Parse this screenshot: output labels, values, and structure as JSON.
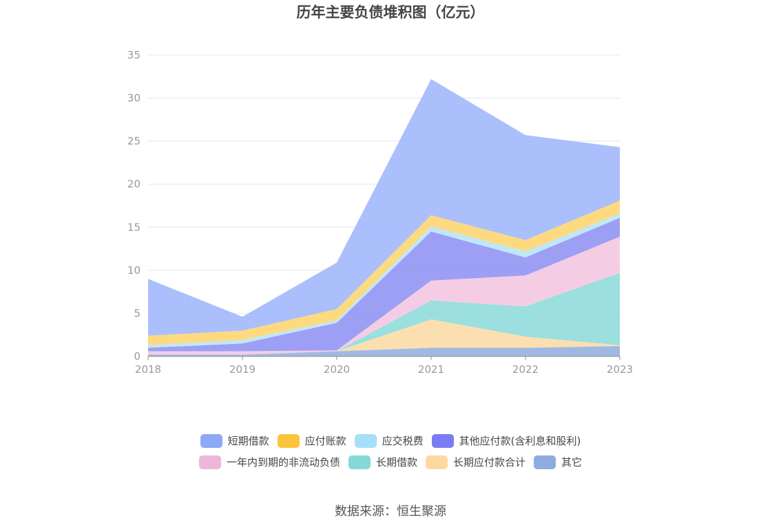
{
  "title": "历年主要负债堆积图（亿元）",
  "source": "数据来源：恒生聚源",
  "chart_data": {
    "type": "area",
    "stacked": true,
    "x": [
      "2018",
      "2019",
      "2020",
      "2021",
      "2022",
      "2023"
    ],
    "ylim": [
      0,
      35
    ],
    "yticks": [
      0,
      5,
      10,
      15,
      20,
      25,
      30,
      35
    ],
    "grid": true,
    "legend_position": "bottom",
    "series": [
      {
        "name": "其它",
        "color": "#8fadde",
        "values": [
          0.2,
          0.2,
          0.6,
          1.0,
          1.0,
          1.2
        ]
      },
      {
        "name": "长期应付款合计",
        "color": "#fcd9a2",
        "values": [
          0.0,
          0.0,
          0.0,
          3.3,
          1.3,
          0.1
        ]
      },
      {
        "name": "长期借款",
        "color": "#8ad9d9",
        "values": [
          0.0,
          0.0,
          0.0,
          2.2,
          3.5,
          8.4
        ]
      },
      {
        "name": "一年内到期的非流动负债",
        "color": "#f2c4e0",
        "values": [
          0.4,
          0.4,
          0.1,
          2.3,
          3.6,
          4.2
        ]
      },
      {
        "name": "其他应付款(含利息和股利)",
        "color": "#8c8ef2",
        "values": [
          0.4,
          0.9,
          3.2,
          5.7,
          2.1,
          2.2
        ]
      },
      {
        "name": "应交税费",
        "color": "#b5e3f7",
        "values": [
          0.3,
          0.4,
          0.3,
          0.6,
          0.7,
          0.5
        ]
      },
      {
        "name": "应付账款",
        "color": "#fdd36a",
        "values": [
          1.1,
          1.1,
          1.3,
          1.3,
          1.3,
          1.5
        ]
      },
      {
        "name": "短期借款",
        "color": "#9bb4fb",
        "values": [
          6.6,
          1.6,
          5.4,
          15.8,
          12.2,
          6.2
        ]
      }
    ]
  },
  "legend": {
    "row1": [
      {
        "label": "短期借款",
        "color": "#8ea8f8"
      },
      {
        "label": "应付账款",
        "color": "#fcc43c"
      },
      {
        "label": "应交税费",
        "color": "#a6e0f8"
      },
      {
        "label": "其他应付款(含利息和股利)",
        "color": "#7b7cf3"
      }
    ],
    "row2": [
      {
        "label": "一年内到期的非流动负债",
        "color": "#ecb7d8"
      },
      {
        "label": "长期借款",
        "color": "#86d8d8"
      },
      {
        "label": "长期应付款合计",
        "color": "#fdd9a0"
      },
      {
        "label": "其它",
        "color": "#8dadde"
      }
    ]
  }
}
